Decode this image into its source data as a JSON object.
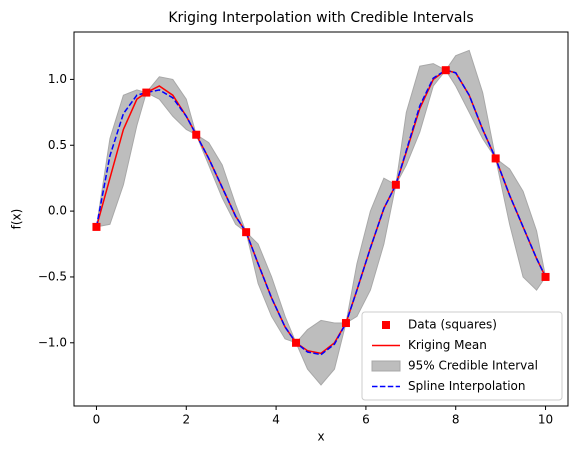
{
  "chart_data": {
    "type": "line",
    "title": "Kriging Interpolation with Credible Intervals",
    "xlabel": "x",
    "ylabel": "f(x)",
    "xlim": [
      -0.5,
      10.5
    ],
    "ylim": [
      -1.48,
      1.36
    ],
    "xticks": [
      0,
      2,
      4,
      6,
      8,
      10
    ],
    "yticks": [
      {
        "value": -1,
        "label": "−1.0"
      },
      {
        "value": -0.5,
        "label": "−0.5"
      },
      {
        "value": 0,
        "label": "0.0"
      },
      {
        "value": 0.5,
        "label": "0.5"
      },
      {
        "value": 1,
        "label": "1.0"
      }
    ],
    "grid": false,
    "legend": "lower right",
    "x": [
      0,
      0.3,
      0.6,
      0.9,
      1.111,
      1.4,
      1.7,
      2.0,
      2.222,
      2.5,
      2.8,
      3.1,
      3.333,
      3.6,
      3.9,
      4.2,
      4.444,
      4.7,
      5.0,
      5.3,
      5.556,
      5.8,
      6.1,
      6.4,
      6.667,
      6.9,
      7.2,
      7.5,
      7.778,
      8.0,
      8.3,
      8.6,
      8.889,
      9.2,
      9.5,
      9.8,
      10
    ],
    "series": [
      {
        "name": "Data (squares)",
        "type": "scatter",
        "color": "#ff0000",
        "x": [
          0,
          1.111,
          2.222,
          3.333,
          4.444,
          5.556,
          6.667,
          7.778,
          8.889,
          10
        ],
        "values": [
          -0.12,
          0.9,
          0.58,
          -0.16,
          -1.0,
          -0.85,
          0.2,
          1.07,
          0.4,
          -0.5
        ]
      },
      {
        "name": "Kriging Mean",
        "type": "line",
        "color": "#ff0000",
        "dash": false,
        "values": [
          -0.12,
          0.25,
          0.62,
          0.85,
          0.9,
          0.95,
          0.88,
          0.72,
          0.58,
          0.4,
          0.18,
          -0.04,
          -0.16,
          -0.4,
          -0.66,
          -0.88,
          -1.0,
          -1.06,
          -1.08,
          -1.0,
          -0.85,
          -0.6,
          -0.28,
          0.02,
          0.2,
          0.45,
          0.78,
          1.0,
          1.07,
          1.05,
          0.88,
          0.62,
          0.4,
          0.12,
          -0.12,
          -0.36,
          -0.5
        ]
      },
      {
        "name": "95% Credible Interval",
        "type": "band",
        "color": "#bdbdbd",
        "lower": [
          -0.12,
          -0.1,
          0.2,
          0.65,
          0.9,
          0.85,
          0.72,
          0.62,
          0.58,
          0.35,
          0.1,
          -0.1,
          -0.16,
          -0.55,
          -0.8,
          -0.97,
          -1.0,
          -1.2,
          -1.32,
          -1.2,
          -0.85,
          -0.8,
          -0.6,
          -0.25,
          0.2,
          0.35,
          0.6,
          0.95,
          1.07,
          0.95,
          0.75,
          0.55,
          0.4,
          -0.1,
          -0.5,
          -0.6,
          -0.5
        ],
        "upper": [
          -0.12,
          0.55,
          0.88,
          0.92,
          0.9,
          1.02,
          1.0,
          0.85,
          0.58,
          0.52,
          0.35,
          0.05,
          -0.16,
          -0.25,
          -0.5,
          -0.8,
          -1.0,
          -0.9,
          -0.83,
          -0.85,
          -0.85,
          -0.4,
          0.0,
          0.25,
          0.2,
          0.75,
          1.1,
          1.12,
          1.07,
          1.18,
          1.22,
          0.9,
          0.4,
          0.32,
          0.15,
          -0.15,
          -0.5
        ]
      },
      {
        "name": "Spline Interpolation",
        "type": "line",
        "color": "#0000ff",
        "dash": true,
        "values": [
          -0.12,
          0.42,
          0.74,
          0.88,
          0.9,
          0.92,
          0.86,
          0.72,
          0.58,
          0.4,
          0.18,
          -0.04,
          -0.16,
          -0.4,
          -0.66,
          -0.88,
          -1.0,
          -1.07,
          -1.09,
          -1.01,
          -0.85,
          -0.6,
          -0.28,
          0.02,
          0.2,
          0.46,
          0.8,
          1.01,
          1.07,
          1.05,
          0.88,
          0.62,
          0.4,
          0.12,
          -0.12,
          -0.36,
          -0.5
        ]
      }
    ]
  }
}
